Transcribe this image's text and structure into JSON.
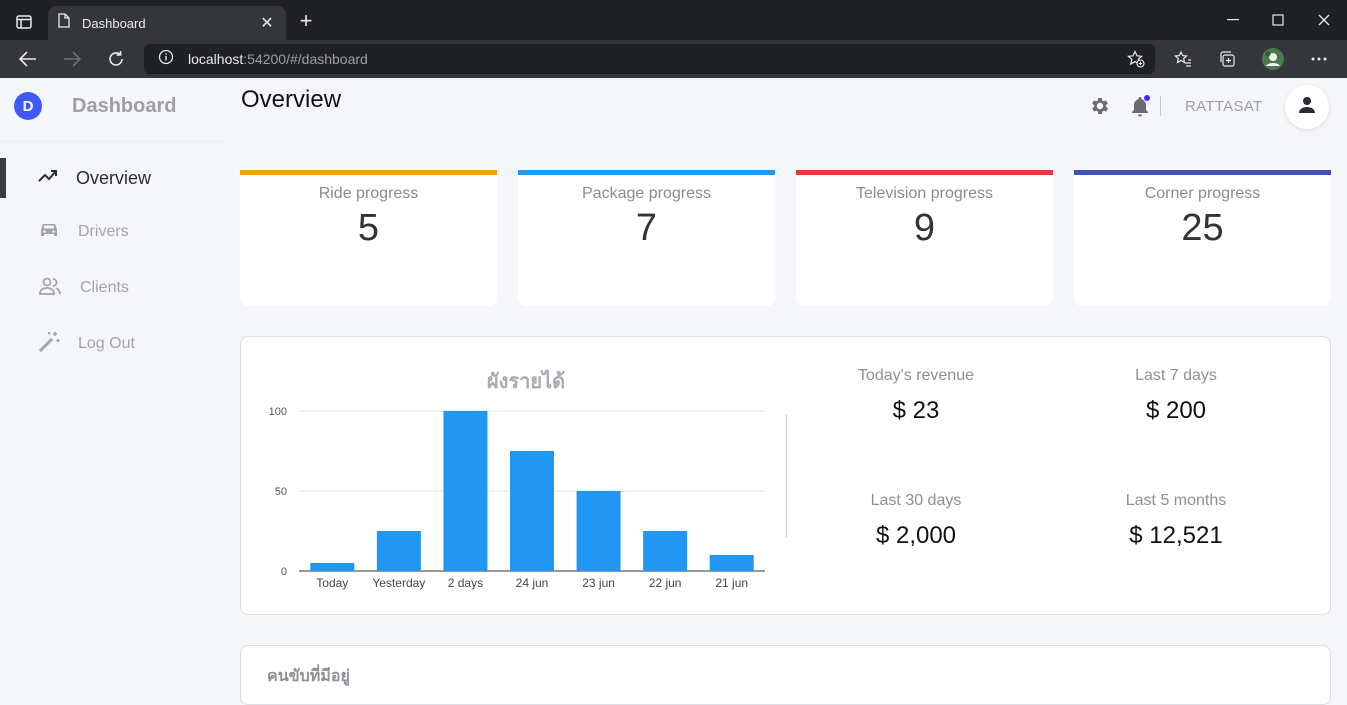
{
  "browser": {
    "tab_title": "Dashboard",
    "url_host": "localhost",
    "url_rest": ":54200/#/dashboard"
  },
  "sidebar": {
    "brand_letter": "D",
    "brand_name": "Dashboard",
    "items": [
      {
        "label": "Overview",
        "icon": "trending-up-icon"
      },
      {
        "label": "Drivers",
        "icon": "car-icon"
      },
      {
        "label": "Clients",
        "icon": "users-icon"
      },
      {
        "label": "Log Out",
        "icon": "magic-wand-icon"
      }
    ]
  },
  "header": {
    "title": "Overview",
    "username": "RATTASAT"
  },
  "cards": [
    {
      "title": "Ride progress",
      "value": "5",
      "color": "#f59c1a"
    },
    {
      "title": "Package progress",
      "value": "7",
      "color": "#2196f3"
    },
    {
      "title": "Television progress",
      "value": "9",
      "color": "#e53935"
    },
    {
      "title": "Corner progress",
      "value": "25",
      "color": "#3f51b5"
    }
  ],
  "revenue": {
    "stats": [
      {
        "label": "Today's revenue",
        "value": "$ 23"
      },
      {
        "label": "Last 7 days",
        "value": "$ 200"
      },
      {
        "label": "Last 30 days",
        "value": "$ 2,000"
      },
      {
        "label": "Last 5 months",
        "value": "$ 12,521"
      }
    ]
  },
  "chart_data": {
    "type": "bar",
    "title": "ผังรายได้",
    "categories": [
      "Today",
      "Yesterday",
      "2 days",
      "24 jun",
      "23 jun",
      "22 jun",
      "21 jun"
    ],
    "values": [
      5,
      25,
      100,
      75,
      50,
      25,
      10
    ],
    "ylim": [
      0,
      100
    ],
    "yticks": [
      0,
      50,
      100
    ],
    "xlabel": "",
    "ylabel": "",
    "grid": true,
    "color": "#2196f3"
  },
  "drivers_panel": {
    "title": "คนขับที่มีอยู่"
  }
}
